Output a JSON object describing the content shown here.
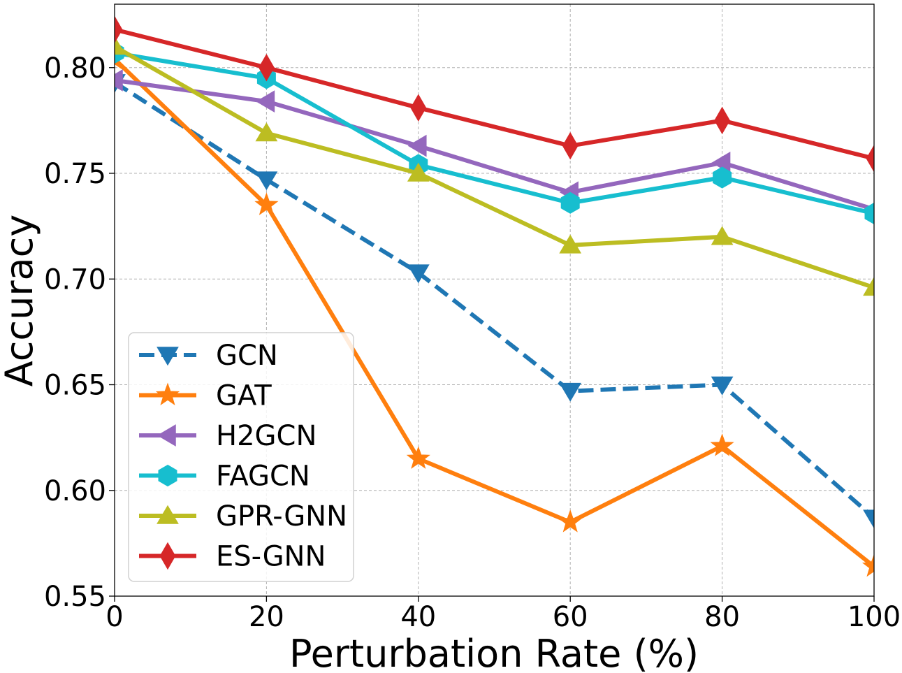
{
  "chart_data": {
    "type": "line",
    "title": "",
    "xlabel": "Perturbation Rate (%)",
    "ylabel": "Accuracy",
    "x": [
      0,
      20,
      40,
      60,
      80,
      100
    ],
    "xlim": [
      0,
      100
    ],
    "ylim": [
      0.55,
      0.83
    ],
    "xticks": [
      "0",
      "20",
      "40",
      "60",
      "80",
      "100"
    ],
    "yticks": [
      "0.55",
      "0.60",
      "0.65",
      "0.70",
      "0.75",
      "0.80"
    ],
    "grid": true,
    "legend_position": "lower-left",
    "series": [
      {
        "name": "GCN",
        "values": [
          0.793,
          0.747,
          0.703,
          0.647,
          0.65,
          0.587
        ],
        "color": "#1f77b4",
        "marker": "triangle-down",
        "linestyle": "dashed"
      },
      {
        "name": "GAT",
        "values": [
          0.804,
          0.735,
          0.615,
          0.585,
          0.621,
          0.564
        ],
        "color": "#ff7f0e",
        "marker": "star",
        "linestyle": "solid"
      },
      {
        "name": "H2GCN",
        "values": [
          0.794,
          0.784,
          0.763,
          0.741,
          0.755,
          0.733
        ],
        "color": "#9467bd",
        "marker": "triangle-left",
        "linestyle": "solid"
      },
      {
        "name": "FAGCN",
        "values": [
          0.807,
          0.795,
          0.754,
          0.736,
          0.748,
          0.731
        ],
        "color": "#17becf",
        "marker": "hexagon",
        "linestyle": "solid"
      },
      {
        "name": "GPR-GNN",
        "values": [
          0.81,
          0.769,
          0.75,
          0.716,
          0.72,
          0.696
        ],
        "color": "#bcbd22",
        "marker": "triangle-up",
        "linestyle": "solid"
      },
      {
        "name": "ES-GNN",
        "values": [
          0.818,
          0.8,
          0.781,
          0.763,
          0.775,
          0.757
        ],
        "color": "#d62728",
        "marker": "diamond",
        "linestyle": "solid"
      }
    ]
  }
}
